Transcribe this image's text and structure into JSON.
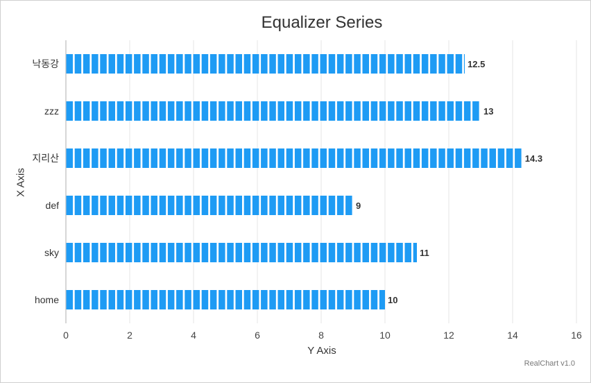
{
  "chart_data": {
    "type": "bar",
    "orientation": "horizontal",
    "style": "equalizer",
    "title": "Equalizer Series",
    "xlabel": "X Axis",
    "ylabel": "Y Axis",
    "categories": [
      "home",
      "sky",
      "def",
      "지리산",
      "zzz",
      "낙동강"
    ],
    "values": [
      10,
      11,
      9,
      14.3,
      13,
      12.5
    ],
    "data_labels": [
      "10",
      "11",
      "9",
      "14.3",
      "13",
      "12.5"
    ],
    "value_axis": {
      "min": 0,
      "max": 16,
      "ticks": [
        "0",
        "2",
        "4",
        "6",
        "8",
        "10",
        "12",
        "14",
        "16"
      ]
    },
    "grid": true,
    "bar_color": "#1e9bf4",
    "credits": "RealChart v1.0"
  }
}
